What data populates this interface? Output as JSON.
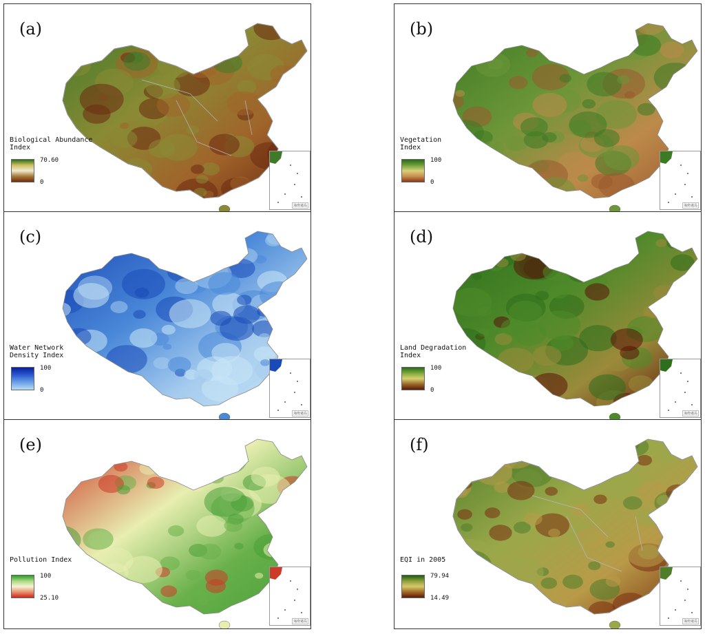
{
  "panels": [
    {
      "id": "a",
      "label": "(a)",
      "legend_title": "Biological Abundance\nIndex",
      "legend_max": "70.60",
      "legend_min": "0",
      "gradient": [
        "#2e6b1a",
        "#cdbf5e",
        "#f1ead0",
        "#a87a3a",
        "#6e2d10"
      ],
      "fill": [
        "#6b2a10",
        "#a0642a",
        "#8a8a34",
        "#3f7a2a"
      ],
      "overlay": "#b9b9c9"
    },
    {
      "id": "b",
      "label": "(b)",
      "legend_title": "Vegetation\nIndex",
      "legend_max": "100",
      "legend_min": "0",
      "gradient": [
        "#2a6a1a",
        "#6fa03a",
        "#d8d07a",
        "#c89050",
        "#8a3a18"
      ],
      "fill": [
        "#9a5a2e",
        "#bd8a4a",
        "#6c9638",
        "#3c7a24"
      ],
      "overlay": ""
    },
    {
      "id": "c",
      "label": "(c)",
      "legend_title": "Water Network\nDensity Index",
      "legend_max": "100",
      "legend_min": "0",
      "gradient": [
        "#0a1e9a",
        "#2a5ad0",
        "#6aa0e6",
        "#b8dcf4"
      ],
      "fill": [
        "#c9e6f6",
        "#a6ccee",
        "#4a88d8",
        "#1a4ab8"
      ],
      "overlay": ""
    },
    {
      "id": "d",
      "label": "(d)",
      "legend_title": "Land Degradation\nIndex",
      "legend_max": "100",
      "legend_min": "0",
      "gradient": [
        "#2a6a1a",
        "#7ca83a",
        "#d8cf70",
        "#9a6a2a",
        "#5a1a08"
      ],
      "fill": [
        "#5a1208",
        "#9a8a3a",
        "#4e8a2a",
        "#2e6e1c"
      ],
      "overlay": ""
    },
    {
      "id": "e",
      "label": "(e)",
      "legend_title": "Pollution Index",
      "legend_max": "100",
      "legend_min": "25.10",
      "gradient": [
        "#2a9a2a",
        "#aad880",
        "#f4f4d4",
        "#e89070",
        "#cc2a1a"
      ],
      "fill": [
        "#4aa03a",
        "#68b04a",
        "#e8eeb0",
        "#cc3a28"
      ],
      "overlay": ""
    },
    {
      "id": "f",
      "label": "(f)",
      "legend_title": "EQI in 2005",
      "legend_max": "79.94",
      "legend_min": "14.49",
      "gradient": [
        "#1e5a12",
        "#8aa03a",
        "#d8c86a",
        "#a06a28",
        "#5e1a08"
      ],
      "fill": [
        "#7a3010",
        "#b89a48",
        "#9aa84a",
        "#4e7e2a"
      ],
      "overlay": "#b9b9c9"
    }
  ],
  "inset_text": "海南诸岛"
}
